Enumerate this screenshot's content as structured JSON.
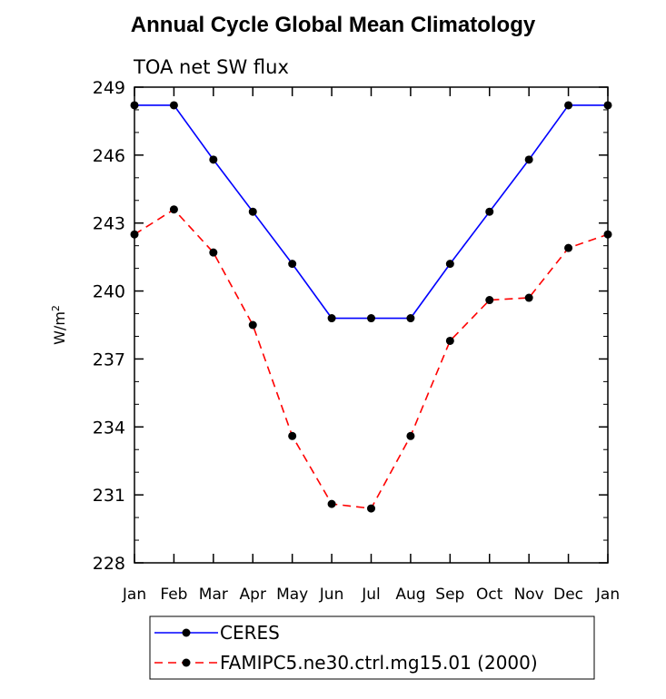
{
  "chart_data": {
    "type": "line",
    "title": "Annual Cycle Global Mean Climatology",
    "subtitle": "TOA net SW flux",
    "ylabel": "W/m",
    "ylabel_superscript": "2",
    "xlabel": "",
    "categories": [
      "Jan",
      "Feb",
      "Mar",
      "Apr",
      "May",
      "Jun",
      "Jul",
      "Aug",
      "Sep",
      "Oct",
      "Nov",
      "Dec",
      "Jan"
    ],
    "ylim": [
      228,
      249
    ],
    "yticks": [
      228,
      231,
      234,
      237,
      240,
      243,
      246,
      249
    ],
    "series": [
      {
        "name": "CERES",
        "color": "#0000ff",
        "dash": "solid",
        "values": [
          248.2,
          248.2,
          245.8,
          243.5,
          241.2,
          238.8,
          238.8,
          238.8,
          241.2,
          243.5,
          245.8,
          248.2,
          248.2
        ]
      },
      {
        "name": "FAMIPC5.ne30.ctrl.mg15.01 (2000)",
        "color": "#ff0000",
        "dash": "dashed",
        "values": [
          242.5,
          243.6,
          241.7,
          238.5,
          233.6,
          230.6,
          230.4,
          233.6,
          237.8,
          239.6,
          239.7,
          241.9,
          242.5
        ]
      }
    ],
    "grid": false,
    "legend_position": "bottom"
  }
}
